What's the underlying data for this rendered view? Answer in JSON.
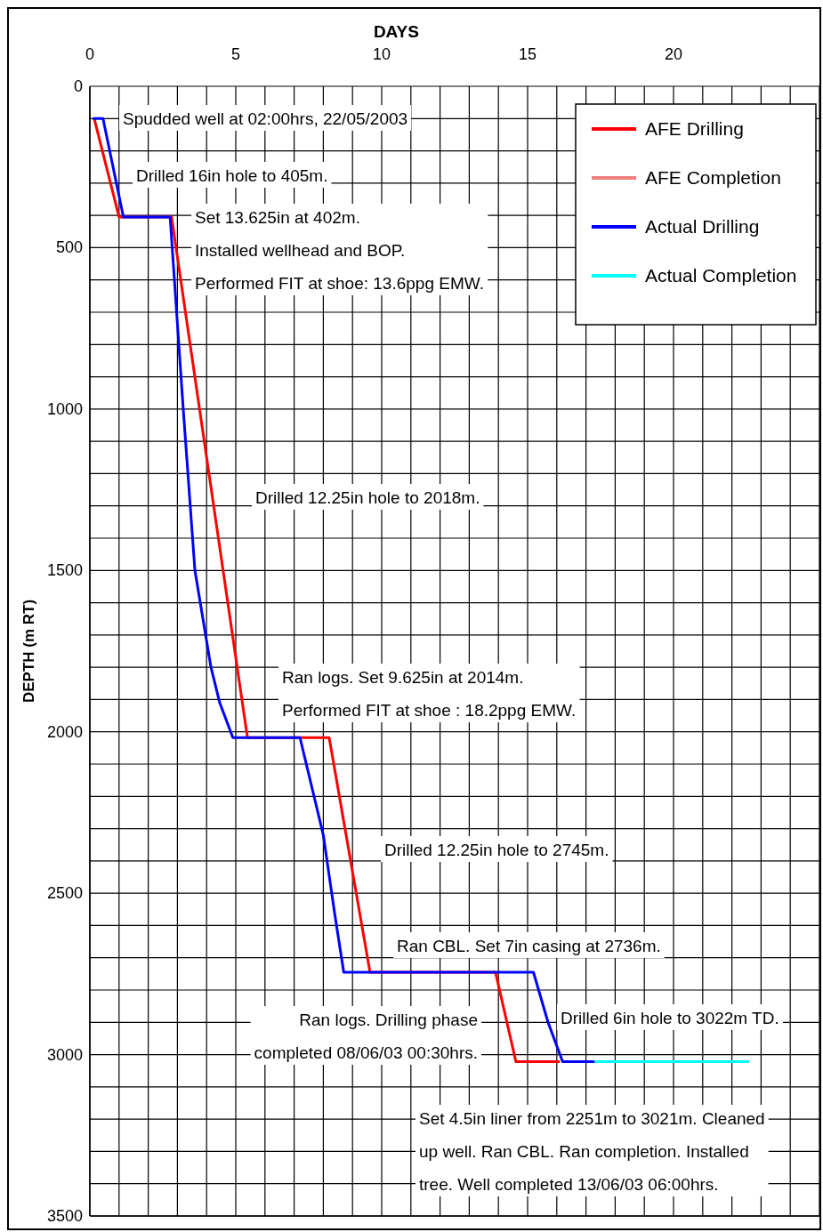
{
  "chart_data": {
    "type": "line",
    "xlabel": "DAYS",
    "ylabel": "DEPTH (m RT)",
    "xlim": [
      0,
      25
    ],
    "ylim": [
      3500,
      0
    ],
    "xticks": [
      0,
      {
        "value": 1,
        "label": null
      },
      {
        "value": 2,
        "label": null
      },
      {
        "value": 3,
        "label": null
      },
      {
        "value": 4,
        "label": null
      },
      5,
      {
        "value": 6,
        "label": null
      },
      {
        "value": 7,
        "label": null
      },
      {
        "value": 8,
        "label": null
      },
      {
        "value": 9,
        "label": null
      },
      10,
      {
        "value": 11,
        "label": null
      },
      {
        "value": 12,
        "label": null
      },
      {
        "value": 13,
        "label": null
      },
      {
        "value": 14,
        "label": null
      },
      15,
      {
        "value": 16,
        "label": null
      },
      {
        "value": 17,
        "label": null
      },
      {
        "value": 18,
        "label": null
      },
      {
        "value": 19,
        "label": null
      },
      20,
      {
        "value": 21,
        "label": null
      },
      {
        "value": 22,
        "label": null
      },
      {
        "value": 23,
        "label": null
      },
      {
        "value": 24,
        "label": null
      },
      {
        "value": 25,
        "label": null
      }
    ],
    "yticks": [
      0,
      {
        "value": 100,
        "label": null
      },
      {
        "value": 200,
        "label": null
      },
      {
        "value": 300,
        "label": null
      },
      {
        "value": 400,
        "label": null
      },
      500,
      {
        "value": 600,
        "label": null
      },
      {
        "value": 700,
        "label": null
      },
      {
        "value": 800,
        "label": null
      },
      {
        "value": 900,
        "label": null
      },
      1000,
      {
        "value": 1100,
        "label": null
      },
      {
        "value": 1200,
        "label": null
      },
      {
        "value": 1300,
        "label": null
      },
      {
        "value": 1400,
        "label": null
      },
      1500,
      {
        "value": 1600,
        "label": null
      },
      {
        "value": 1700,
        "label": null
      },
      {
        "value": 1800,
        "label": null
      },
      {
        "value": 1900,
        "label": null
      },
      2000,
      {
        "value": 2100,
        "label": null
      },
      {
        "value": 2200,
        "label": null
      },
      {
        "value": 2300,
        "label": null
      },
      {
        "value": 2400,
        "label": null
      },
      2500,
      {
        "value": 2600,
        "label": null
      },
      {
        "value": 2700,
        "label": null
      },
      {
        "value": 2800,
        "label": null
      },
      {
        "value": 2900,
        "label": null
      },
      3000,
      {
        "value": 3100,
        "label": null
      },
      {
        "value": 3200,
        "label": null
      },
      {
        "value": 3300,
        "label": null
      },
      {
        "value": 3400,
        "label": null
      },
      3500
    ],
    "grid": true,
    "legend": "top right",
    "line_style": "solid",
    "marker": "none",
    "series": [
      {
        "name": "AFE Drilling",
        "color": "#ff0000",
        "x": [
          0.15,
          1.0,
          2.8,
          5.4,
          8.2,
          9.6,
          13.9,
          14.6,
          16.1
        ],
        "values": [
          100,
          405,
          405,
          2018,
          2018,
          2745,
          2745,
          3022,
          3022
        ]
      },
      {
        "name": "AFE Completion",
        "color": "#f08080"
      },
      {
        "name": "Actual Drilling",
        "color": "#0000ff",
        "x": [
          0.1,
          0.45,
          1.15,
          2.75,
          3.2,
          3.6,
          4.15,
          4.45,
          4.9,
          7.2,
          8.0,
          8.4,
          8.7,
          15.2,
          15.7,
          16.2,
          17.3
        ],
        "values": [
          100,
          100,
          405,
          405,
          1000,
          1500,
          1800,
          1910,
          2018,
          2018,
          2320,
          2570,
          2745,
          2745,
          2900,
          3022,
          3022
        ]
      },
      {
        "name": "Actual Completion",
        "color": "#00ffff",
        "x": [
          17.3,
          22.6
        ],
        "values": [
          3022,
          3022
        ]
      }
    ],
    "annotations": [
      "Spudded well at 02:00hrs, 22/05/2003",
      "Drilled 16in hole to 405m.",
      "Set 13.625in at 402m.\nInstalled wellhead and BOP.\nPerformed FIT at shoe: 13.6ppg EMW.",
      "Drilled 12.25in hole to 2018m.",
      "Ran logs. Set 9.625in at 2014m.\nPerformed FIT at shoe : 18.2ppg EMW.",
      "Drilled 12.25in hole to 2745m.",
      "Ran CBL. Set 7in casing at 2736m.",
      "Ran logs. Drilling phase\ncompleted 08/06/03 00:30hrs.",
      "Drilled 6in hole to 3022m TD.",
      "Set 4.5in liner from 2251m to 3021m. Cleaned\nup well. Ran CBL. Ran completion. Installed\ntree. Well completed 13/06/03 06:00hrs."
    ]
  }
}
